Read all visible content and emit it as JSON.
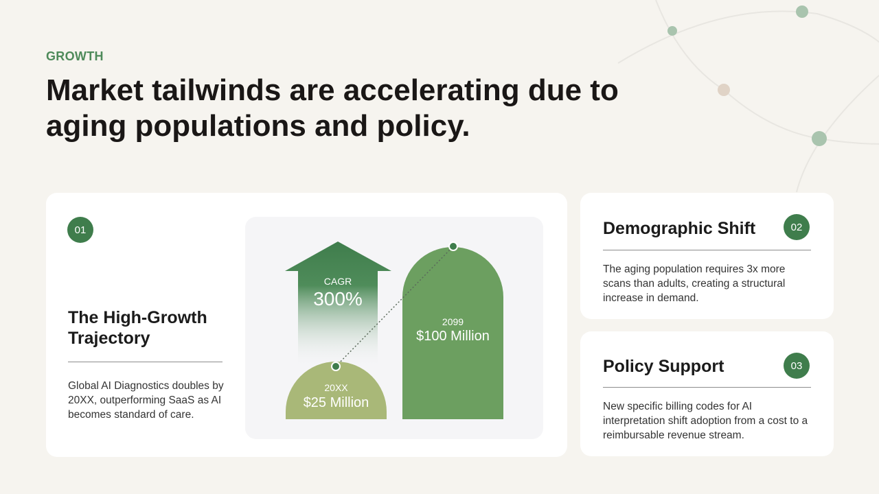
{
  "header": {
    "eyebrow": "GROWTH",
    "title": "Market tailwinds are accelerating due to aging populations and policy."
  },
  "main_card": {
    "number": "01",
    "heading": "The High-Growth Trajectory",
    "body": "Global AI Diagnostics doubles by 20XX, outperforming SaaS as AI becomes standard of care.",
    "graphic": {
      "cagr_label": "CAGR",
      "cagr_value": "300%",
      "start": {
        "year": "20XX",
        "value": "$25 Million"
      },
      "end": {
        "year": "2099",
        "value": "$100 Million"
      }
    }
  },
  "side_cards": [
    {
      "number": "02",
      "heading": "Demographic Shift",
      "body": "The aging population requires 3x more scans than adults, creating a structural increase in demand."
    },
    {
      "number": "03",
      "heading": "Policy Support",
      "body": "New specific billing codes for AI interpretation shift adoption from a cost to a reimbursable revenue stream."
    }
  ],
  "colors": {
    "accent": "#3f7d4c",
    "bar_light": "#a9b878",
    "bar_dark": "#6c9f60",
    "background": "#f6f4ef"
  }
}
